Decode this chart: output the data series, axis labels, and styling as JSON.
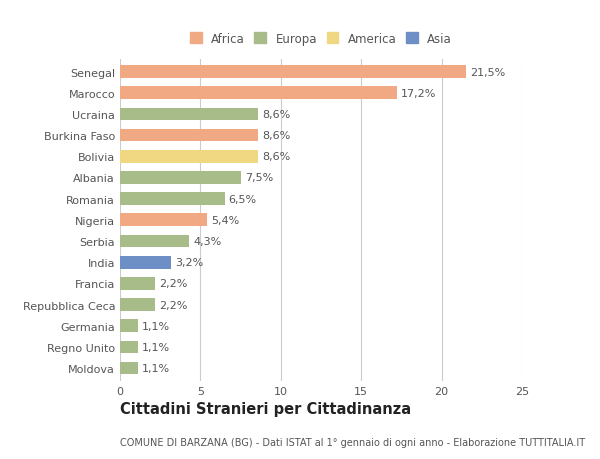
{
  "countries": [
    "Senegal",
    "Marocco",
    "Ucraina",
    "Burkina Faso",
    "Bolivia",
    "Albania",
    "Romania",
    "Nigeria",
    "Serbia",
    "India",
    "Francia",
    "Repubblica Ceca",
    "Germania",
    "Regno Unito",
    "Moldova"
  ],
  "values": [
    21.5,
    17.2,
    8.6,
    8.6,
    8.6,
    7.5,
    6.5,
    5.4,
    4.3,
    3.2,
    2.2,
    2.2,
    1.1,
    1.1,
    1.1
  ],
  "labels": [
    "21,5%",
    "17,2%",
    "8,6%",
    "8,6%",
    "8,6%",
    "7,5%",
    "6,5%",
    "5,4%",
    "4,3%",
    "3,2%",
    "2,2%",
    "2,2%",
    "1,1%",
    "1,1%",
    "1,1%"
  ],
  "continents": [
    "Africa",
    "Africa",
    "Europa",
    "Africa",
    "America",
    "Europa",
    "Europa",
    "Africa",
    "Europa",
    "Asia",
    "Europa",
    "Europa",
    "Europa",
    "Europa",
    "Europa"
  ],
  "colors": {
    "Africa": "#F0A982",
    "Europa": "#A8BC8A",
    "America": "#F0D882",
    "Asia": "#6E8FC5"
  },
  "legend_order": [
    "Africa",
    "Europa",
    "America",
    "Asia"
  ],
  "xlim": [
    0,
    25
  ],
  "xticks": [
    0,
    5,
    10,
    15,
    20,
    25
  ],
  "title": "Cittadini Stranieri per Cittadinanza",
  "subtitle": "COMUNE DI BARZANA (BG) - Dati ISTAT al 1° gennaio di ogni anno - Elaborazione TUTTITALIA.IT",
  "bg_color": "#ffffff",
  "grid_color": "#cccccc",
  "bar_height": 0.6,
  "label_fontsize": 8,
  "tick_fontsize": 8,
  "title_fontsize": 10.5,
  "subtitle_fontsize": 7,
  "legend_fontsize": 8.5
}
